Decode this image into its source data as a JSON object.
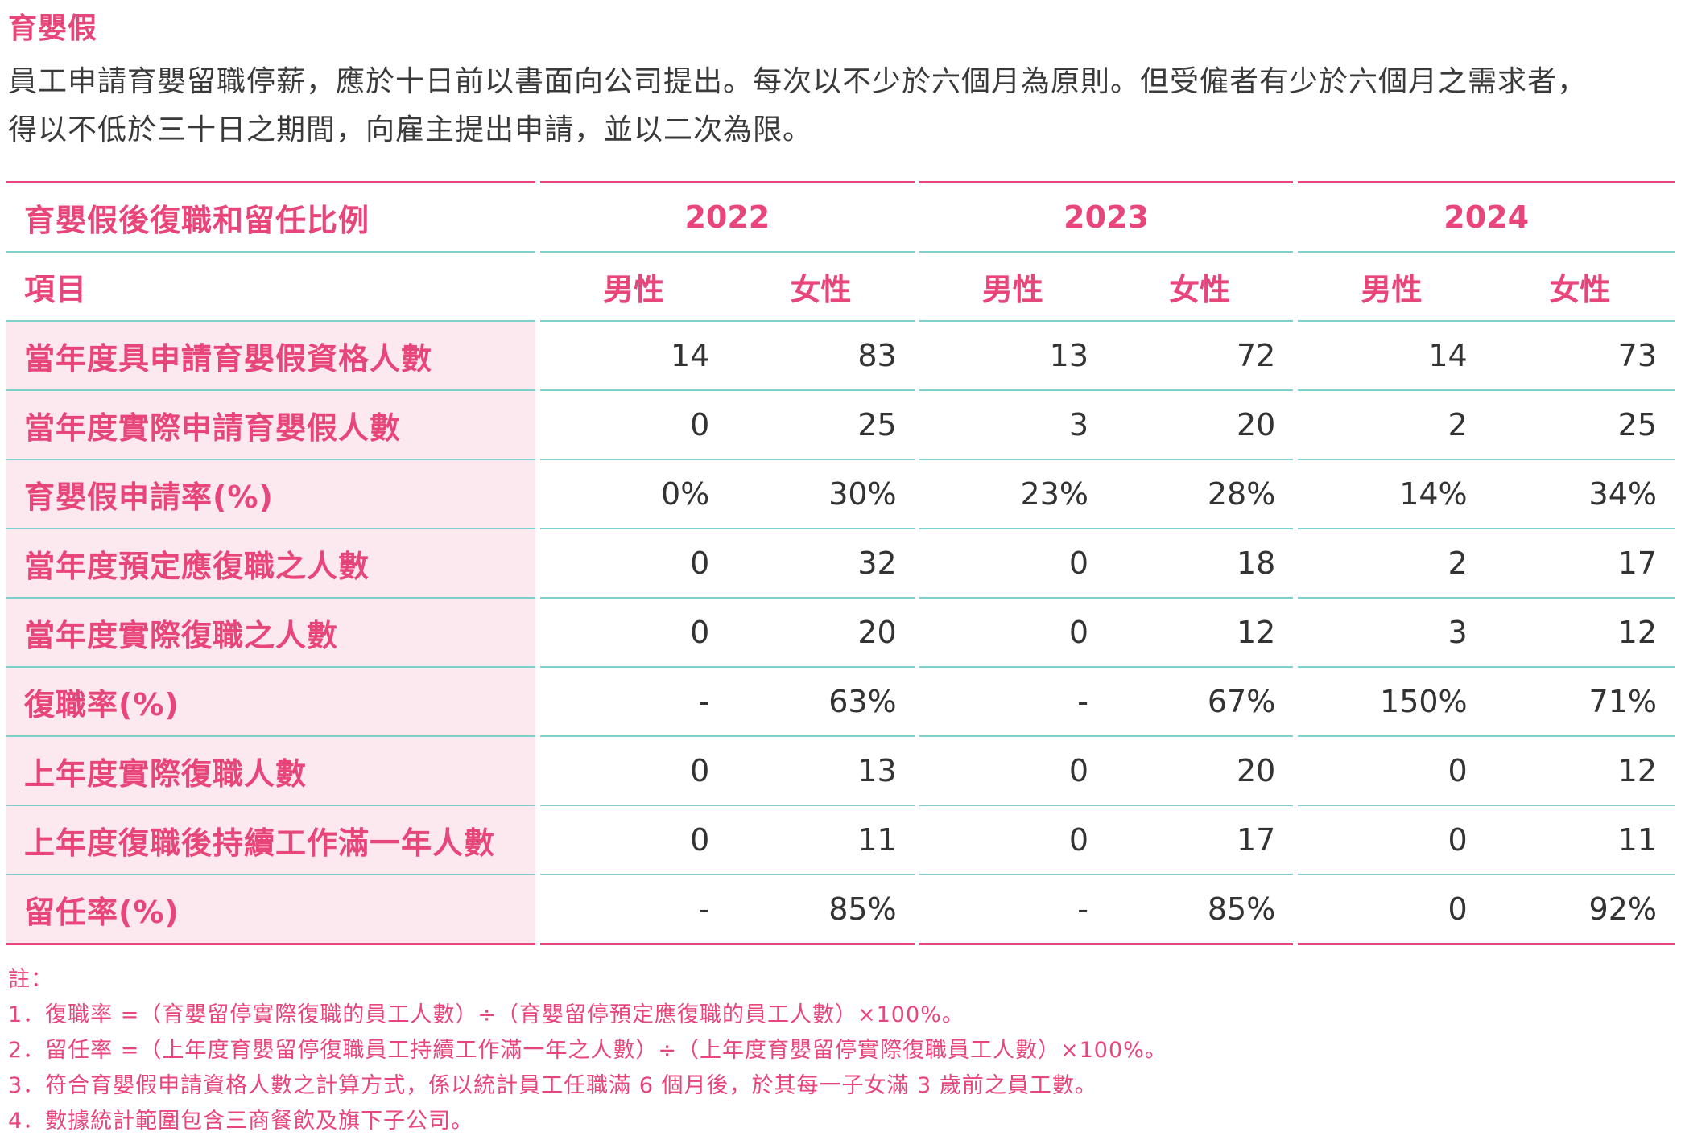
{
  "section_title": "育嬰假",
  "intro": {
    "line1": "員工申請育嬰留職停薪，應於十日前以書面向公司提出。每次以不少於六個月為原則。但受僱者有少於六個月之需求者，",
    "line2": "得以不低於三十日之期間，向雇主提出申請，並以二次為限。"
  },
  "table": {
    "header_label": "育嬰假後復職和留任比例",
    "years": [
      "2022",
      "2023",
      "2024"
    ],
    "sub_label": "項目",
    "sexes": [
      "男性",
      "女性",
      "男性",
      "女性",
      "男性",
      "女性"
    ],
    "rows": [
      {
        "label": "當年度具申請育嬰假資格人數",
        "values": [
          "14",
          "83",
          "13",
          "72",
          "14",
          "73"
        ]
      },
      {
        "label": "當年度實際申請育嬰假人數",
        "values": [
          "0",
          "25",
          "3",
          "20",
          "2",
          "25"
        ]
      },
      {
        "label": "育嬰假申請率(%)",
        "values": [
          "0%",
          "30%",
          "23%",
          "28%",
          "14%",
          "34%"
        ]
      },
      {
        "label": "當年度預定應復職之人數",
        "values": [
          "0",
          "32",
          "0",
          "18",
          "2",
          "17"
        ]
      },
      {
        "label": "當年度實際復職之人數",
        "values": [
          "0",
          "20",
          "0",
          "12",
          "3",
          "12"
        ]
      },
      {
        "label": "復職率(%)",
        "values": [
          "-",
          "63%",
          "-",
          "67%",
          "150%",
          "71%"
        ]
      },
      {
        "label": "上年度實際復職人數",
        "values": [
          "0",
          "13",
          "0",
          "20",
          "0",
          "12"
        ]
      },
      {
        "label": "上年度復職後持續工作滿一年人數",
        "values": [
          "0",
          "11",
          "0",
          "17",
          "0",
          "11"
        ]
      },
      {
        "label": "留任率(%)",
        "values": [
          "-",
          "85%",
          "-",
          "85%",
          "0",
          "92%"
        ]
      }
    ]
  },
  "notes": {
    "heading": "註：",
    "items": [
      "1．復職率 =（育嬰留停實際復職的員工人數）÷（育嬰留停預定應復職的員工人數）×100%。",
      "2．留任率 =（上年度育嬰留停復職員工持續工作滿一年之人數）÷（上年度育嬰留停實際復職員工人數）×100%。",
      "3．符合育嬰假申請資格人數之計算方式，係以統計員工任職滿 6 個月後，於其每一子女滿 3 歲前之員工數。",
      "4．數據統計範圍包含三商餐飲及旗下子公司。"
    ]
  }
}
